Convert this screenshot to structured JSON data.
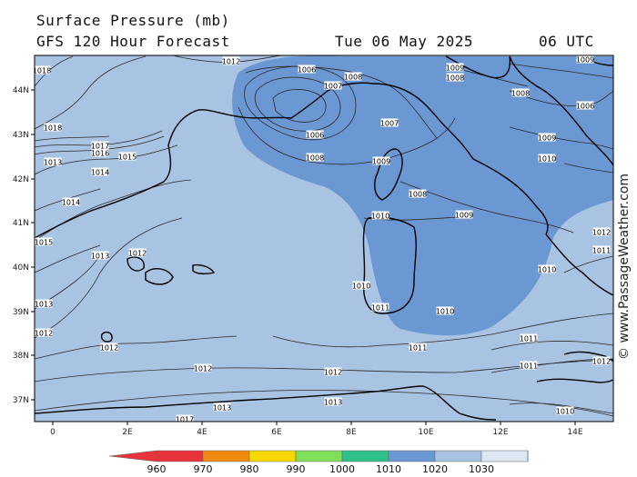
{
  "header": {
    "title": "Surface Pressure (mb)",
    "subtitle": "GFS 120 Hour Forecast",
    "date": "Tue 06 May 2025",
    "time": "06 UTC"
  },
  "credit": "© www.PassageWeather.com",
  "axes": {
    "lon_labels": [
      "0",
      "2E",
      "4E",
      "6E",
      "8E",
      "10E",
      "12E",
      "14E"
    ],
    "lat_labels": [
      "44N",
      "43N",
      "42N",
      "41N",
      "40N",
      "39N",
      "38N",
      "37N"
    ]
  },
  "isobar_labels": [
    {
      "text": "1018",
      "id": "a"
    },
    {
      "text": "1012",
      "id": "b"
    },
    {
      "text": "1006",
      "id": "c"
    },
    {
      "text": "1007",
      "id": "d"
    },
    {
      "text": "1008",
      "id": "e"
    },
    {
      "text": "1009",
      "id": "f"
    },
    {
      "text": "1008",
      "id": "g"
    },
    {
      "text": "1009",
      "id": "h"
    },
    {
      "text": "1008",
      "id": "i"
    },
    {
      "text": "1006",
      "id": "j"
    },
    {
      "text": "1018",
      "id": "k"
    },
    {
      "text": "1017",
      "id": "l"
    },
    {
      "text": "1016",
      "id": "m"
    },
    {
      "text": "1015",
      "id": "n"
    },
    {
      "text": "1013",
      "id": "o"
    },
    {
      "text": "1014",
      "id": "p"
    },
    {
      "text": "1006",
      "id": "q"
    },
    {
      "text": "1007",
      "id": "r"
    },
    {
      "text": "1008",
      "id": "s"
    },
    {
      "text": "1009",
      "id": "t"
    },
    {
      "text": "1009",
      "id": "u"
    },
    {
      "text": "1010",
      "id": "v"
    },
    {
      "text": "1014",
      "id": "w"
    },
    {
      "text": "1008",
      "id": "x"
    },
    {
      "text": "1010",
      "id": "y"
    },
    {
      "text": "1009",
      "id": "z"
    },
    {
      "text": "1015",
      "id": "aa"
    },
    {
      "text": "1013",
      "id": "ab"
    },
    {
      "text": "1012",
      "id": "ac"
    },
    {
      "text": "1010",
      "id": "ad"
    },
    {
      "text": "1010",
      "id": "ae"
    },
    {
      "text": "1013",
      "id": "af"
    },
    {
      "text": "1012",
      "id": "ag"
    },
    {
      "text": "1011",
      "id": "ah"
    },
    {
      "text": "1010",
      "id": "ai"
    },
    {
      "text": "1011",
      "id": "aj"
    },
    {
      "text": "1012",
      "id": "ak"
    },
    {
      "text": "1011",
      "id": "al"
    },
    {
      "text": "1011",
      "id": "am"
    },
    {
      "text": "1012",
      "id": "an"
    },
    {
      "text": "1012",
      "id": "ao"
    },
    {
      "text": "1012",
      "id": "ap"
    },
    {
      "text": "1013",
      "id": "aq"
    },
    {
      "text": "1013",
      "id": "ar"
    },
    {
      "text": "1010",
      "id": "as"
    },
    {
      "text": "1011",
      "id": "at"
    },
    {
      "text": "1012",
      "id": "au"
    },
    {
      "text": "1017",
      "id": "av"
    }
  ],
  "colorbar": {
    "labels": [
      "960",
      "970",
      "980",
      "990",
      "1000",
      "1010",
      "1020",
      "1030"
    ],
    "colors": [
      "#e8333a",
      "#f08a10",
      "#f5d800",
      "#7fdf5a",
      "#2fbf8a",
      "#6b98d3",
      "#a9c3e3",
      "#dde7f4"
    ]
  },
  "colors": {
    "low_fill": "#6b98d3",
    "base_fill": "#a9c3e3",
    "coast": "#000000"
  }
}
